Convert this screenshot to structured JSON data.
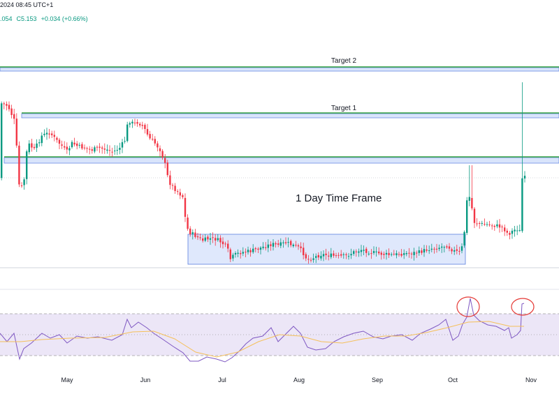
{
  "header": {
    "datetime": "2024 08:45 UTC+1",
    "ohlc_prefix": ".054",
    "close": "C5.153",
    "change": "+0.034 (+0.66%)"
  },
  "chart_data": {
    "type": "candlestick",
    "title": "",
    "annotations": {
      "timeframe": "1 Day Time Frame",
      "target1": "Target 1",
      "target2": "Target 2"
    },
    "x_months": [
      "May",
      "Jun",
      "Jul",
      "Aug",
      "Sep",
      "Oct",
      "Nov"
    ],
    "colors": {
      "up": "#089981",
      "down": "#f23645",
      "target_line": "#2e9e3e",
      "zone_fill": "#d9e4fb",
      "zone_stroke": "#5b7fe0",
      "rsi": "#7e57c2",
      "rsi_ma": "#f5c05a",
      "rsi_band": "#ece6f7",
      "highlight_circle": "#e53935"
    },
    "rsi": {
      "upper": 70,
      "middle": 50,
      "lower": 30
    }
  }
}
